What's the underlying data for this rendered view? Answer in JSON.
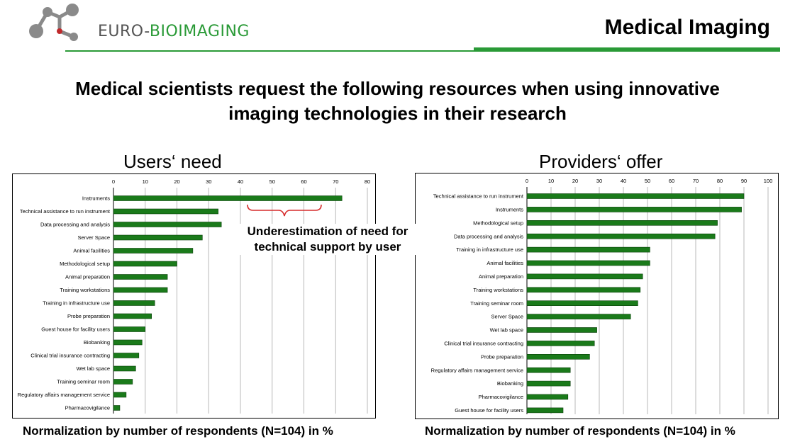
{
  "header": {
    "logo_text_part1": "EURO-",
    "logo_text_part2": "BIOIMAGING",
    "title": "Medical Imaging",
    "accent_color": "#2a9a37",
    "logo_grey": "#8a8a8a",
    "logo_red": "#c0292b"
  },
  "headline": {
    "line1": "Medical scientists request the following resources when using innovative",
    "line2": "imaging technologies in their research"
  },
  "annotation": {
    "line1": "Underestimation of need for",
    "line2": "technical support by user"
  },
  "bar_color": "#1a7a1a",
  "chart_data": [
    {
      "type": "bar",
      "orientation": "horizontal",
      "title": "Users‘ need",
      "footnote": "Normalization by number of respondents (N=104) in %",
      "xlim": [
        0,
        80
      ],
      "ticks": [
        0,
        10,
        20,
        30,
        40,
        50,
        60,
        70,
        80
      ],
      "grid": true,
      "categories": [
        "Instruments",
        "Technical assistance to run instrument",
        "Data processing and analysis",
        "Server Space",
        "Animal facilities",
        "Methodological setup",
        "Animal preparation",
        "Training workstations",
        "Training in infrastructure use",
        "Probe preparation",
        "Guest house for facility users",
        "Biobanking",
        "Clinical trial insurance contracting",
        "Wet lab space",
        "Training seminar room",
        "Regulatory affairs management service",
        "Pharmacovigilance"
      ],
      "values": [
        72,
        33,
        34,
        28,
        25,
        20,
        17,
        17,
        13,
        12,
        10,
        9,
        8,
        7,
        6,
        4,
        2
      ]
    },
    {
      "type": "bar",
      "orientation": "horizontal",
      "title": "Providers‘ offer",
      "footnote": "Normalization by number of respondents (N=104) in %",
      "xlim": [
        0,
        100
      ],
      "ticks": [
        0,
        10,
        20,
        30,
        40,
        50,
        60,
        70,
        80,
        90,
        100
      ],
      "grid": true,
      "categories": [
        "Technical assistance to run instrument",
        "Instruments",
        "Methodological setup",
        "Data processing and analysis",
        "Training in infrastructure use",
        "Animal facilities",
        "Animal preparation",
        "Training workstations",
        "Training seminar room",
        "Server Space",
        "Wet lab space",
        "Clinical trial insurance contracting",
        "Probe preparation",
        "Regulatory affairs management service",
        "Biobanking",
        "Pharmacovigilance",
        "Guest house for facility users"
      ],
      "values": [
        90,
        89,
        79,
        78,
        51,
        51,
        48,
        47,
        46,
        43,
        29,
        28,
        26,
        18,
        18,
        17,
        15
      ]
    }
  ]
}
